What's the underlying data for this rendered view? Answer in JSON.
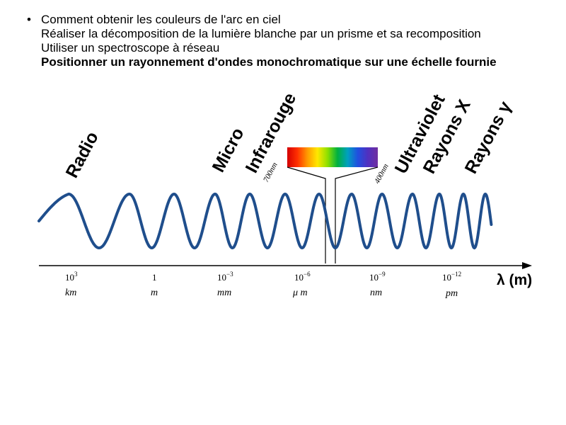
{
  "bullets": {
    "symbol": "•",
    "lines": [
      "Comment obtenir les couleurs de l'arc en ciel",
      "Réaliser la décomposition de la lumière blanche par un prisme et sa recomposition",
      "Utiliser un spectroscope à réseau",
      "Positionner un rayonnement d'ondes monochromatique sur une échelle fournie"
    ]
  },
  "diagram": {
    "bands": [
      "Radio",
      "Micro",
      "Infrarouge",
      "Ultraviolet",
      "Rayons X",
      "Rayons γ"
    ],
    "visible_limits": [
      "700nm",
      "400nm"
    ],
    "axis_label": "λ (m)",
    "ticks": [
      {
        "base": "10",
        "exp": "3",
        "unit": "km"
      },
      {
        "base": "1",
        "exp": "",
        "unit": "m"
      },
      {
        "base": "10",
        "exp": "−3",
        "unit": "mm"
      },
      {
        "base": "10",
        "exp": "−6",
        "unit": "μ m"
      },
      {
        "base": "10",
        "exp": "−9",
        "unit": "nm"
      },
      {
        "base": "10",
        "exp": "−12",
        "unit": "pm"
      }
    ],
    "colors": {
      "wave": "#1f4e8c",
      "spectrum": [
        "#d40000",
        "#ff3000",
        "#ff9a00",
        "#ffe800",
        "#8fe000",
        "#00b040",
        "#00a0c0",
        "#2050e0",
        "#5030c0",
        "#7030a0"
      ]
    }
  }
}
